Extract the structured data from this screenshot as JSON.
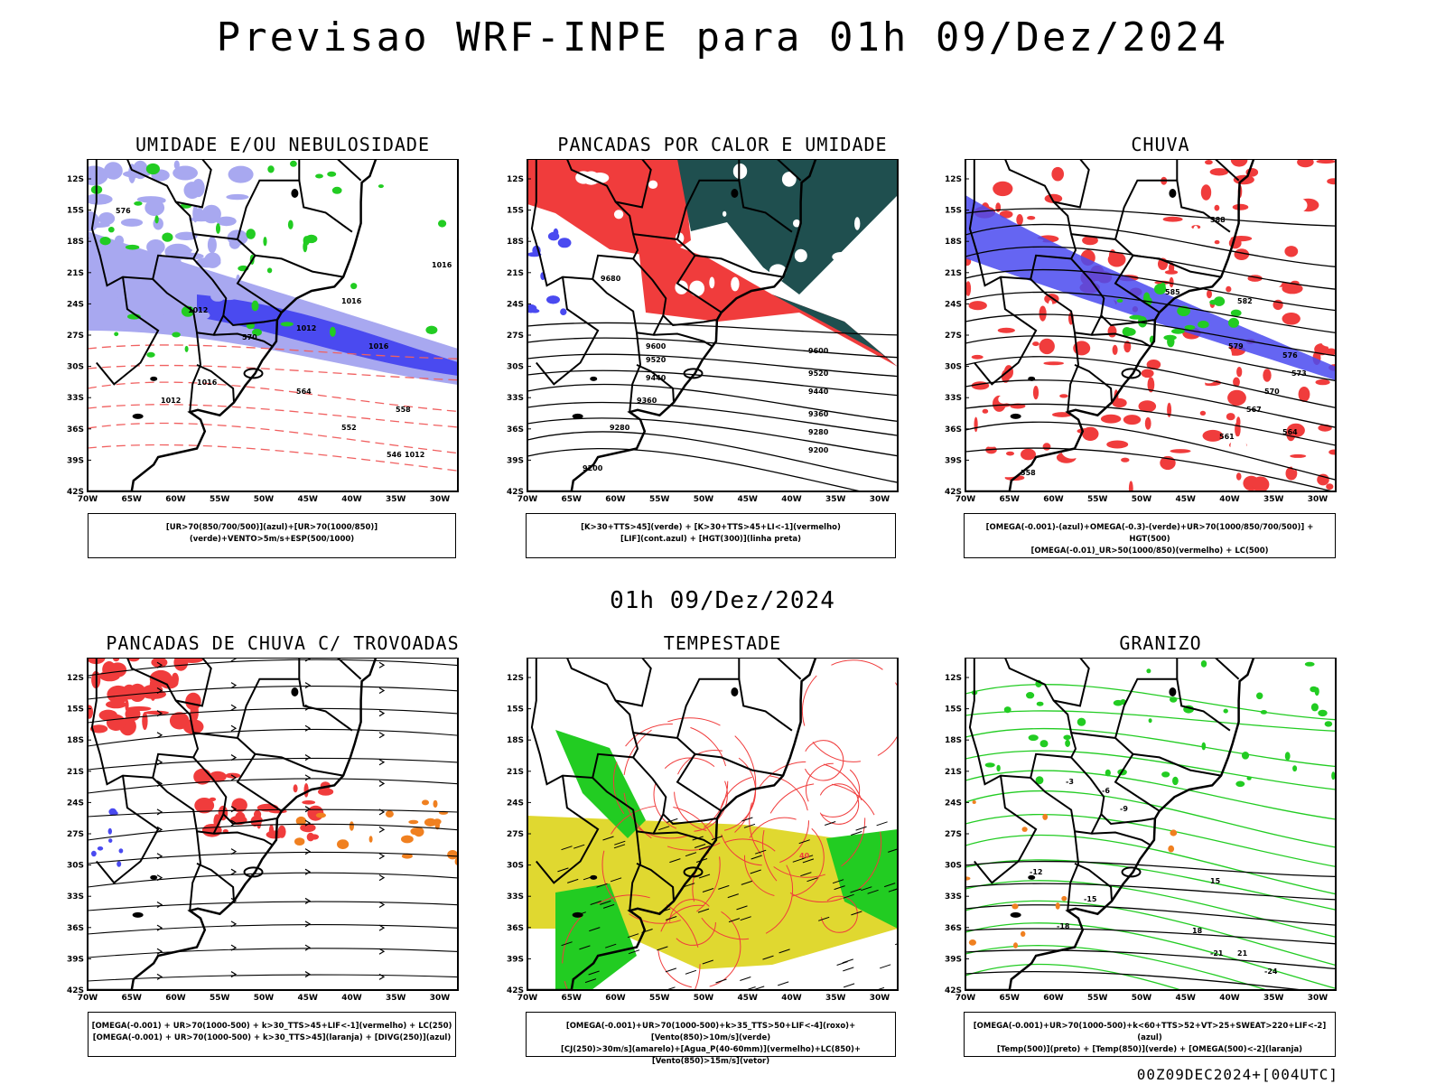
{
  "header": {
    "title": "Previsao WRF-INPE  para 01h 09/Dez/2024",
    "subtitle": "01h 09/Dez/2024",
    "footer": "00Z09DEC2024+[004UTC]"
  },
  "axes": {
    "lat_labels": [
      "12S",
      "15S",
      "18S",
      "21S",
      "24S",
      "27S",
      "30S",
      "33S",
      "36S",
      "39S",
      "42S"
    ],
    "lon_labels": [
      "70W",
      "65W",
      "60W",
      "55W",
      "50W",
      "45W",
      "40W",
      "35W",
      "30W"
    ]
  },
  "panels": [
    {
      "title": "UMIDADE E/OU NEBULOSIDADE",
      "legend": [
        "[UR>70(850/700/500)](azul)+[UR>70(1000/850)](verde)+VENTO>5m/s+ESP(500/1000)"
      ],
      "labels": [
        "1012",
        "1016",
        "1012",
        "1016",
        "1012",
        "1016",
        "576",
        "570",
        "564",
        "558",
        "552",
        "546",
        "1012",
        "1016"
      ]
    },
    {
      "title": "PANCADAS POR CALOR E UMIDADE",
      "legend": [
        "[K>30+TTS>45](verde) + [K>30+TTS>45+LI<-1](vermelho)",
        "[LIF](cont.azul) + [HGT(300)](linha preta)"
      ],
      "labels": [
        "9680",
        "9600",
        "9520",
        "9440",
        "9360",
        "9280",
        "9200",
        "9600",
        "9520",
        "9440",
        "9360",
        "9280",
        "9200"
      ]
    },
    {
      "title": "CHUVA",
      "legend": [
        "[OMEGA(-0.001)-(azul)+OMEGA(-0.3)-(verde)+UR>70(1000/850/700/500)] + HGT(500)",
        "[OMEGA(-0.01)_UR>50(1000/850)(vermelho) + LC(500)"
      ],
      "labels": [
        "588",
        "585",
        "582",
        "579",
        "576",
        "573",
        "570",
        "567",
        "564",
        "561",
        "558"
      ]
    },
    {
      "title": "PANCADAS DE CHUVA C/ TROVOADAS",
      "legend": [
        "[OMEGA(-0.001) + UR>70(1000-500) + k>30_TTS>45+LIF<-1](vermelho) + LC(250)",
        "[OMEGA(-0.001) + UR>70(1000-500) + k>30_TTS>45](laranja) + [DIVG(250)](azul)"
      ],
      "labels": []
    },
    {
      "title": "TEMPESTADE",
      "legend": [
        "[OMEGA(-0.001)+UR>70(1000-500)+k>35_TTS>50+LIF<-4](roxo)+[Vento(850)>10m/s](verde)",
        "[CJ(250)>30m/s](amarelo)+[Agua_P(40-60mm)](vermelho)+LC(850)+[Vento(850)>15m/s](vetor)"
      ],
      "labels": [
        "40"
      ]
    },
    {
      "title": "GRANIZO",
      "legend": [
        "[OMEGA(-0.001)+UR>70(1000-500)+k<60+TTS>52+VT>25+SWEAT>220+LIF<-2](azul)",
        "[Temp(500)](preto) + [Temp(850)](verde) + [OMEGA(500)<-2](laranja)"
      ],
      "labels": [
        "-3",
        "-6",
        "-9",
        "-12",
        "-15",
        "-18",
        "-21",
        "-24",
        "15",
        "18",
        "21"
      ]
    }
  ],
  "colors": {
    "blue": "#4a4af0",
    "lightblue": "#a8a8f0",
    "green": "#22cc22",
    "red": "#f03c3c",
    "darkteal": "#1f4f4f",
    "yellow": "#e0d830",
    "orange": "#f08020",
    "salmon": "#f06060"
  }
}
